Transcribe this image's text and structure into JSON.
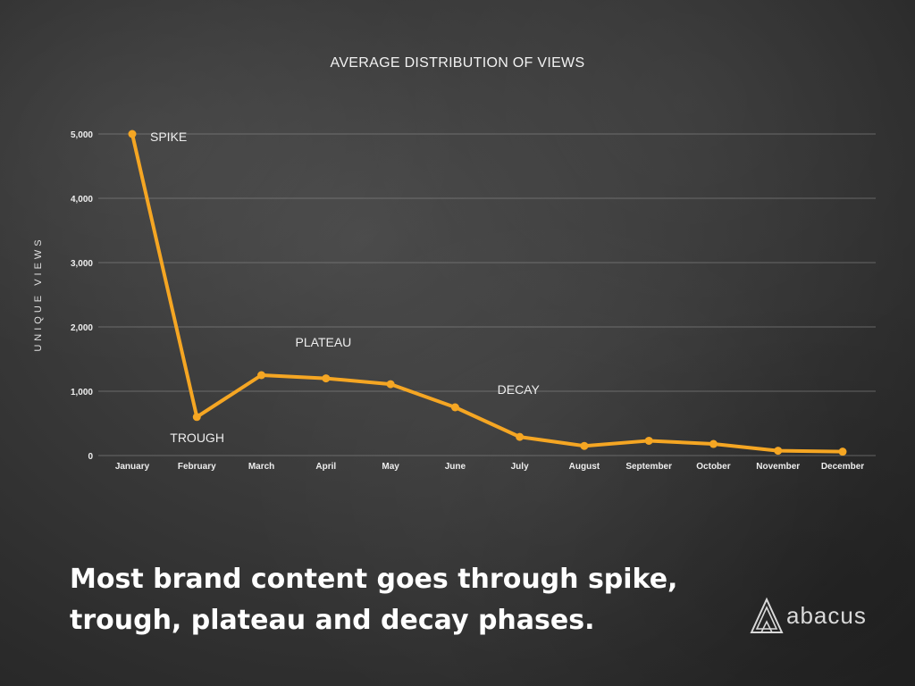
{
  "caption": "Most brand content goes through spike, trough, plateau and decay phases.",
  "brand": {
    "name": "abacus"
  },
  "colors": {
    "line": "#F5A623",
    "grid": "#8a8a8a",
    "text": "#eeeeee"
  },
  "chart_data": {
    "type": "line",
    "title": "AVERAGE DISTRIBUTION OF VIEWS",
    "ylabel": "UNIQUE VIEWS",
    "xlabel": "",
    "categories": [
      "January",
      "February",
      "March",
      "April",
      "May",
      "June",
      "July",
      "August",
      "September",
      "October",
      "November",
      "December"
    ],
    "series": [
      {
        "values": [
          5000,
          600,
          1250,
          1200,
          1110,
          750,
          290,
          150,
          230,
          180,
          75,
          60
        ]
      }
    ],
    "ylim": [
      0,
      5000
    ],
    "yticks": [
      0,
      1000,
      2000,
      3000,
      4000,
      5000
    ],
    "ytick_labels": [
      "0",
      "1,000",
      "2,000",
      "3,000",
      "4,000",
      "5,000"
    ],
    "grid": true,
    "legend": "none",
    "annotations": [
      {
        "text": "SPIKE",
        "category": "January",
        "value": 5000
      },
      {
        "text": "TROUGH",
        "category": "February",
        "value": 600
      },
      {
        "text": "PLATEAU",
        "category": "March",
        "value": 1250
      },
      {
        "text": "DECAY",
        "category": "July",
        "value": 290
      }
    ]
  }
}
